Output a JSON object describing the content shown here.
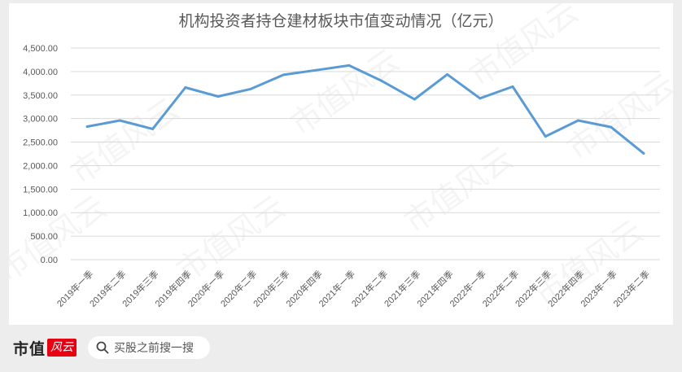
{
  "chart_data": {
    "type": "line",
    "title": "机构投资者持仓建材板块市值变动情况（亿元）",
    "categories": [
      "2019年一季",
      "2019年二季",
      "2019年三季",
      "2019年四季",
      "2020年一季",
      "2020年二季",
      "2020年三季",
      "2020年四季",
      "2021年一季",
      "2021年二季",
      "2021年三季",
      "2021年四季",
      "2022年一季",
      "2022年二季",
      "2022年三季",
      "2022年四季",
      "2023年一季",
      "2023年二季"
    ],
    "series": [
      {
        "values": [
          2830,
          2960,
          2780,
          3660,
          3470,
          3630,
          3930,
          4030,
          4130,
          3800,
          3410,
          3940,
          3430,
          3680,
          2620,
          2960,
          2820,
          2260
        ]
      }
    ],
    "ylim": [
      0,
      4500
    ],
    "yticks": [
      "0.00",
      "500.00",
      "1,000.00",
      "1,500.00",
      "2,000.00",
      "2,500.00",
      "3,000.00",
      "3,500.00",
      "4,000.00",
      "4,500.00"
    ],
    "grid": true,
    "line_color": "#5b9bd5"
  },
  "watermark": "市值风云",
  "footer": {
    "brand_text": "市值",
    "brand_badge": "风云",
    "search_text": "买股之前搜一搜"
  }
}
